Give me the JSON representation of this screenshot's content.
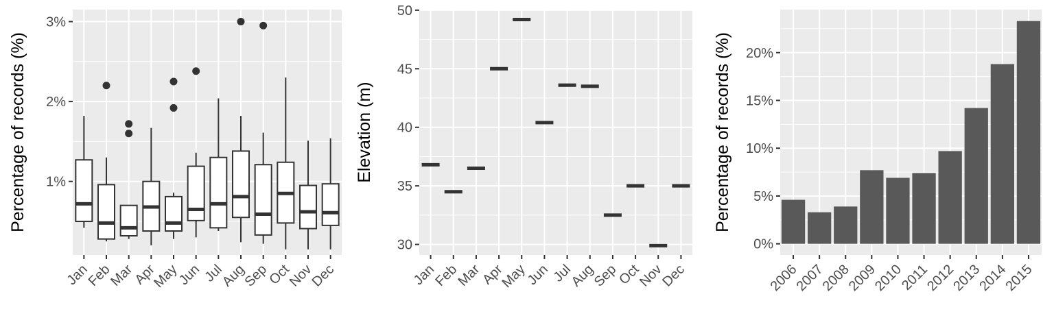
{
  "chart_data": [
    {
      "type": "boxplot",
      "ylabel": "Percentage of records (%)",
      "y_ticks": [
        "1%",
        "2%",
        "3%"
      ],
      "y_tick_values": [
        1,
        2,
        3
      ],
      "ylim": [
        0.08,
        3.15
      ],
      "categories": [
        "Jan",
        "Feb",
        "Mar",
        "Apr",
        "May",
        "Jun",
        "Jul",
        "Aug",
        "Sep",
        "Oct",
        "Nov",
        "Dec"
      ],
      "boxes": [
        {
          "min": 0.42,
          "q1": 0.5,
          "median": 0.72,
          "q3": 1.27,
          "max": 1.82,
          "outliers": []
        },
        {
          "min": 0.25,
          "q1": 0.28,
          "median": 0.48,
          "q3": 0.96,
          "max": 1.3,
          "outliers": [
            2.2
          ]
        },
        {
          "min": 0.28,
          "q1": 0.32,
          "median": 0.42,
          "q3": 0.7,
          "max": 0.7,
          "outliers": [
            1.72,
            1.6
          ]
        },
        {
          "min": 0.2,
          "q1": 0.38,
          "median": 0.68,
          "q3": 1.0,
          "max": 1.67,
          "outliers": []
        },
        {
          "min": 0.28,
          "q1": 0.38,
          "median": 0.48,
          "q3": 0.81,
          "max": 0.86,
          "outliers": [
            2.25,
            1.92
          ]
        },
        {
          "min": 0.3,
          "q1": 0.51,
          "median": 0.65,
          "q3": 1.19,
          "max": 1.36,
          "outliers": [
            2.38
          ]
        },
        {
          "min": 0.38,
          "q1": 0.42,
          "median": 0.72,
          "q3": 1.3,
          "max": 2.04,
          "outliers": []
        },
        {
          "min": 0.24,
          "q1": 0.55,
          "median": 0.81,
          "q3": 1.38,
          "max": 1.82,
          "outliers": [
            3.0
          ]
        },
        {
          "min": 0.22,
          "q1": 0.33,
          "median": 0.59,
          "q3": 1.21,
          "max": 1.61,
          "outliers": [
            2.95
          ]
        },
        {
          "min": 0.15,
          "q1": 0.48,
          "median": 0.85,
          "q3": 1.24,
          "max": 2.3,
          "outliers": []
        },
        {
          "min": 0.15,
          "q1": 0.41,
          "median": 0.62,
          "q3": 0.95,
          "max": 1.51,
          "outliers": []
        },
        {
          "min": 0.15,
          "q1": 0.45,
          "median": 0.61,
          "q3": 0.97,
          "max": 1.54,
          "outliers": []
        }
      ]
    },
    {
      "type": "crossbar",
      "ylabel": "Elevation (m)",
      "y_ticks": [
        "30",
        "35",
        "40",
        "45",
        "50"
      ],
      "y_tick_values": [
        30,
        35,
        40,
        45,
        50
      ],
      "ylim": [
        29.1,
        50.05
      ],
      "categories": [
        "Jan",
        "Feb",
        "Mar",
        "Apr",
        "May",
        "Jun",
        "Jul",
        "Aug",
        "Sep",
        "Oct",
        "Nov",
        "Dec"
      ],
      "values": [
        36.8,
        34.5,
        36.5,
        45.0,
        49.2,
        40.4,
        43.6,
        43.5,
        32.5,
        35.0,
        29.9,
        35.0
      ]
    },
    {
      "type": "bar",
      "ylabel": "Percentage of records (%)",
      "y_ticks": [
        "0%",
        "5%",
        "10%",
        "15%",
        "20%"
      ],
      "y_tick_values": [
        0,
        5,
        10,
        15,
        20
      ],
      "ylim": [
        -1.17,
        24.5
      ],
      "categories": [
        "2006",
        "2007",
        "2008",
        "2009",
        "2010",
        "2011",
        "2012",
        "2013",
        "2014",
        "2015"
      ],
      "values": [
        4.6,
        3.3,
        3.9,
        7.7,
        6.9,
        7.4,
        9.7,
        14.2,
        18.8,
        23.3
      ]
    }
  ]
}
